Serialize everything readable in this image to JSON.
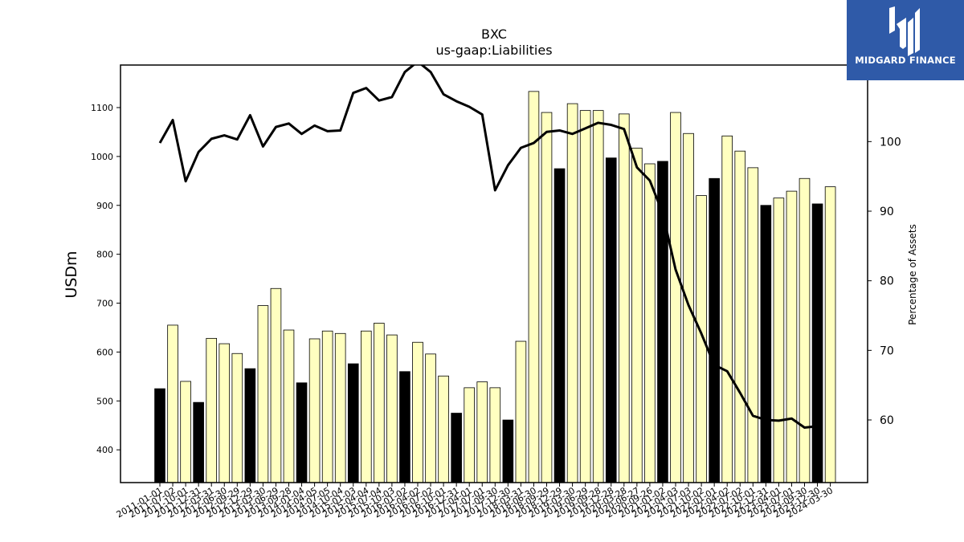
{
  "brand": {
    "name": "MIDGARD FINANCE",
    "color": "#2f5aa8",
    "icon": "midgard-logo-icon"
  },
  "chart_data": {
    "type": "bar",
    "title": "BXC",
    "subtitle": "us-gaap:Liabilities",
    "ylabel": "USDm",
    "y2label": "Percentage of Assets",
    "ylim": [
      333,
      1187
    ],
    "y2lim": [
      51,
      111
    ],
    "yticks": [
      400,
      500,
      600,
      700,
      800,
      900,
      1000,
      1100
    ],
    "y2ticks": [
      60,
      70,
      80,
      90,
      100
    ],
    "grid": false,
    "colors": {
      "bar_highlight": "#000000",
      "bar_default": "#ffffc0",
      "bar_edge": "#000000",
      "line": "#000000"
    },
    "categories": [
      "2011-01-01",
      "2011-07-02",
      "2011-10-01",
      "2011-12-31",
      "2012-03-31",
      "2012-06-30",
      "2012-09-29",
      "2012-12-29",
      "2013-03-30",
      "2013-06-29",
      "2013-09-28",
      "2014-01-04",
      "2014-04-05",
      "2014-07-05",
      "2014-10-04",
      "2015-01-03",
      "2015-04-04",
      "2015-07-04",
      "2015-10-03",
      "2016-01-02",
      "2016-04-02",
      "2016-07-02",
      "2016-10-01",
      "2016-12-31",
      "2017-04-01",
      "2017-07-01",
      "2017-09-30",
      "2017-12-30",
      "2018-03-31",
      "2018-06-30",
      "2018-09-29",
      "2018-12-29",
      "2019-03-30",
      "2019-06-29",
      "2019-09-28",
      "2019-12-28",
      "2020-03-28",
      "2020-06-27",
      "2020-09-26",
      "2021-01-02",
      "2021-04-03",
      "2021-07-03",
      "2021-10-02",
      "2022-01-01",
      "2022-04-02",
      "2022-07-02",
      "2022-10-01",
      "2022-12-31",
      "2023-04-01",
      "2023-07-01",
      "2023-09-30",
      "2023-12-30",
      "2024-03-30"
    ],
    "values": [
      525,
      655,
      540,
      497,
      628,
      617,
      597,
      566,
      695,
      730,
      645,
      537,
      627,
      643,
      638,
      576,
      643,
      659,
      635,
      560,
      620,
      596,
      551,
      475,
      527,
      539,
      527,
      461,
      622,
      1133,
      1090,
      975,
      1108,
      1094,
      1094,
      997,
      1087,
      1017,
      985,
      990,
      1090,
      1047,
      920,
      955,
      1042,
      1011,
      977,
      900,
      915,
      929,
      955,
      903,
      938
    ],
    "highlight": [
      true,
      false,
      false,
      true,
      false,
      false,
      false,
      true,
      false,
      false,
      false,
      true,
      false,
      false,
      false,
      true,
      false,
      false,
      false,
      true,
      false,
      false,
      false,
      true,
      false,
      false,
      false,
      true,
      false,
      false,
      false,
      true,
      false,
      false,
      false,
      true,
      false,
      false,
      false,
      true,
      false,
      false,
      false,
      true,
      false,
      false,
      false,
      true,
      false,
      false,
      false,
      true,
      false
    ],
    "series": [
      {
        "axis": "right",
        "type": "line",
        "values": [
          99.8,
          103.1,
          94.3,
          98.5,
          100.4,
          100.9,
          100.3,
          103.8,
          99.3,
          102.1,
          102.6,
          101.1,
          102.3,
          101.5,
          101.6,
          107.0,
          107.7,
          105.9,
          106.4,
          110.0,
          111.5,
          110.0,
          106.8,
          105.8,
          105.0,
          103.9,
          93.0,
          96.6,
          99.1,
          99.8,
          101.4,
          101.6,
          101.1,
          101.9,
          102.7,
          102.4,
          101.8,
          96.3,
          94.4,
          89.7,
          81.6,
          76.5,
          72.4,
          67.9,
          67.0,
          63.9,
          60.6,
          60.0,
          59.9,
          60.2,
          58.9,
          59.1,
          null
        ]
      }
    ]
  }
}
